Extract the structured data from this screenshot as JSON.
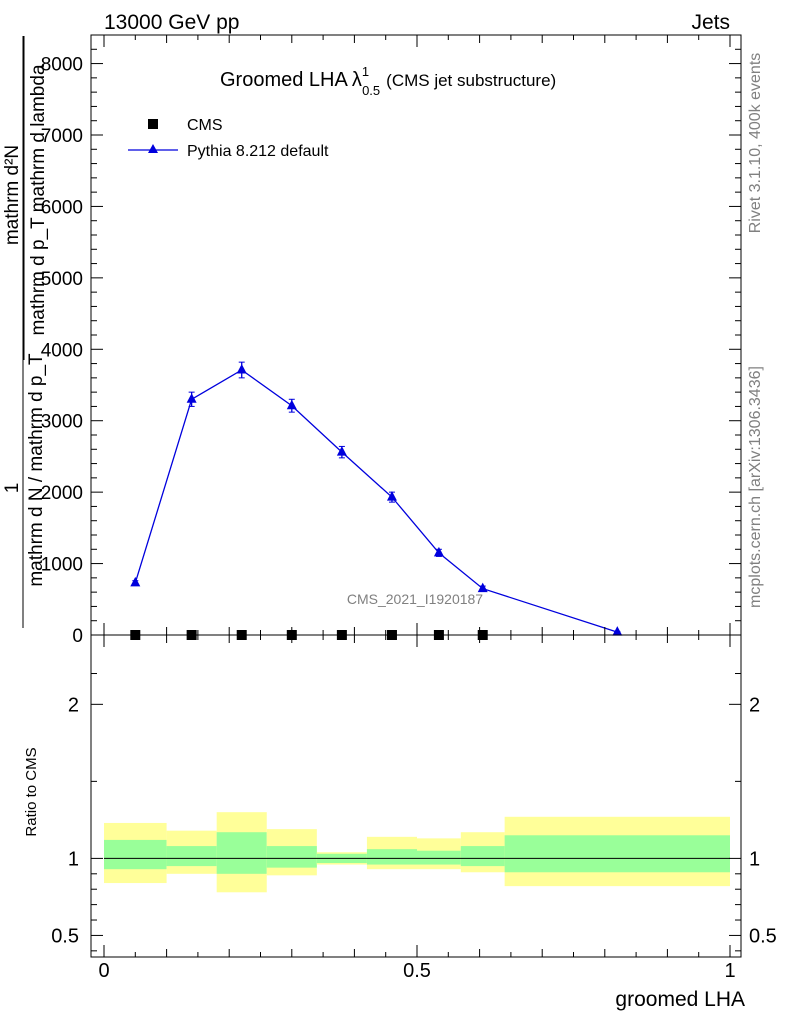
{
  "header": {
    "left": "13000 GeV pp",
    "right": "Jets"
  },
  "side_labels": {
    "rivet": "Rivet 3.1.10,  400k events",
    "mcplots": "mcplots.cern.ch [arXiv:1306.3436]"
  },
  "watermark": "CMS_2021_I1920187",
  "chart_data": [
    {
      "panel": "main",
      "type": "line",
      "title": {
        "main": "Groomed LHA",
        "symbol": "λ",
        "sup": "1",
        "sub": "0.5",
        "note": "(CMS jet substructure)"
      },
      "ylabel": {
        "outer_num": "1",
        "outer_den": "mathrm d N / mathrm d p_T",
        "inner_num": "mathrm d²N",
        "inner_den": "mathrm d p_T mathrm d lambda"
      },
      "xlabel": "groomed LHA",
      "xlim": [
        0,
        1
      ],
      "ylim": [
        0,
        8400
      ],
      "yticks": [
        {
          "v": 0,
          "label": "0"
        },
        {
          "v": 1000,
          "label": "1000"
        },
        {
          "v": 2000,
          "label": "2000"
        },
        {
          "v": 3000,
          "label": "3000"
        },
        {
          "v": 4000,
          "label": "4000"
        },
        {
          "v": 5000,
          "label": "5000"
        },
        {
          "v": 6000,
          "label": "6000"
        },
        {
          "v": 7000,
          "label": "7000"
        },
        {
          "v": 8000,
          "label": "8000"
        }
      ],
      "legend": [
        "CMS",
        "Pythia 8.212 default"
      ],
      "series": [
        {
          "name": "CMS",
          "marker": "square",
          "color": "#000000",
          "x": [
            0.05,
            0.14,
            0.22,
            0.3,
            0.38,
            0.46,
            0.535,
            0.605
          ],
          "y": [
            0,
            0,
            0,
            0,
            0,
            0,
            0,
            0
          ]
        },
        {
          "name": "Pythia 8.212 default",
          "marker": "triangle",
          "color": "#0000dd",
          "x": [
            0.05,
            0.14,
            0.22,
            0.3,
            0.38,
            0.46,
            0.535,
            0.605,
            0.82
          ],
          "y": [
            730,
            3300,
            3710,
            3210,
            2560,
            1930,
            1150,
            650,
            40
          ],
          "err": [
            30,
            100,
            110,
            90,
            80,
            70,
            50,
            35,
            10
          ]
        }
      ]
    },
    {
      "panel": "ratio",
      "type": "area",
      "ylabel": "Ratio to CMS",
      "xlim": [
        0,
        1
      ],
      "ylim": [
        0.36,
        2.45
      ],
      "yticks": [
        {
          "v": 0.5,
          "label": "0.5"
        },
        {
          "v": 1,
          "label": "1"
        },
        {
          "v": 2,
          "label": "2"
        }
      ],
      "xticks": [
        {
          "v": 0,
          "label": "0"
        },
        {
          "v": 0.5,
          "label": "0.5"
        },
        {
          "v": 1,
          "label": "1"
        }
      ],
      "reference": 1,
      "bands": [
        {
          "x0": 0.0,
          "x1": 0.1,
          "y_lo": 0.84,
          "y_hi": 1.23,
          "g_lo": 0.93,
          "g_hi": 1.12
        },
        {
          "x0": 0.1,
          "x1": 0.18,
          "y_lo": 0.9,
          "y_hi": 1.18,
          "g_lo": 0.95,
          "g_hi": 1.08
        },
        {
          "x0": 0.18,
          "x1": 0.26,
          "y_lo": 0.78,
          "y_hi": 1.3,
          "g_lo": 0.9,
          "g_hi": 1.17
        },
        {
          "x0": 0.26,
          "x1": 0.34,
          "y_lo": 0.89,
          "y_hi": 1.19,
          "g_lo": 0.94,
          "g_hi": 1.08
        },
        {
          "x0": 0.34,
          "x1": 0.42,
          "y_lo": 0.96,
          "y_hi": 1.04,
          "g_lo": 0.97,
          "g_hi": 1.03
        },
        {
          "x0": 0.42,
          "x1": 0.5,
          "y_lo": 0.93,
          "y_hi": 1.14,
          "g_lo": 0.96,
          "g_hi": 1.06
        },
        {
          "x0": 0.5,
          "x1": 0.57,
          "y_lo": 0.93,
          "y_hi": 1.13,
          "g_lo": 0.96,
          "g_hi": 1.05
        },
        {
          "x0": 0.57,
          "x1": 0.64,
          "y_lo": 0.91,
          "y_hi": 1.17,
          "g_lo": 0.95,
          "g_hi": 1.08
        },
        {
          "x0": 0.64,
          "x1": 1.0,
          "y_lo": 0.82,
          "y_hi": 1.27,
          "g_lo": 0.91,
          "g_hi": 1.15
        }
      ],
      "colors": {
        "yellow": "#ffff99",
        "green": "#99ff99",
        "line": "#000000"
      }
    }
  ]
}
